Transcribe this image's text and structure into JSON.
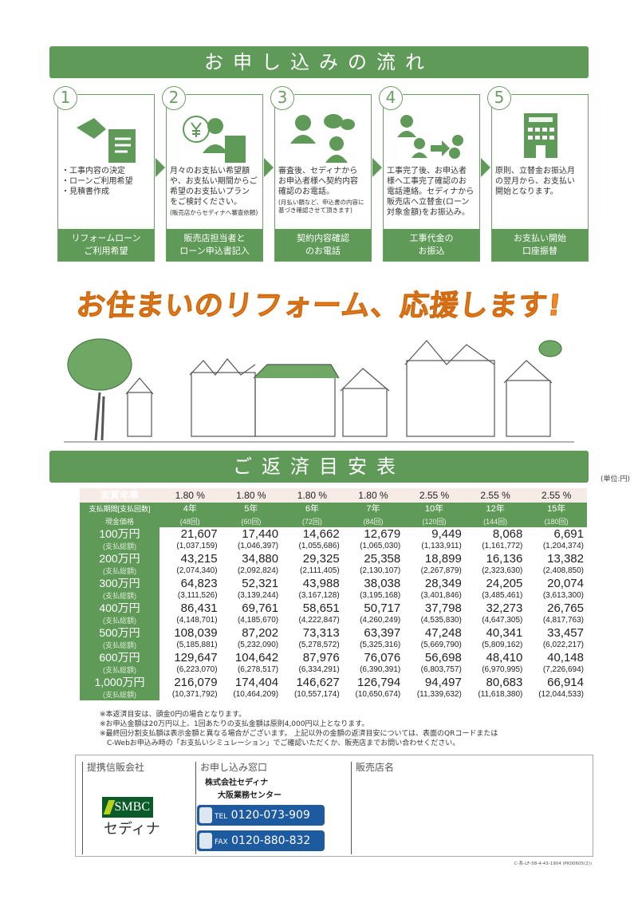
{
  "flow": {
    "title": "お申し込みの流れ",
    "steps": [
      {
        "num": "1",
        "icon": "handshake-document-icon",
        "lines": [
          "・工事内容の決定",
          "・ローンご利用希望",
          "・見積書作成"
        ],
        "note": "",
        "label1": "リフォームローン",
        "label2": "ご利用希望"
      },
      {
        "num": "2",
        "icon": "staff-calculator-icon",
        "lines": [
          "月々のお支払い希望額",
          "や、お支払い期間からご",
          "希望のお支払いプラン",
          "をご検討ください。"
        ],
        "note": "(販売店からセディナへ審査依頼)",
        "label1": "販売店担当者と",
        "label2": "ローン申込書記入"
      },
      {
        "num": "3",
        "icon": "operator-phone-icon",
        "lines": [
          "審査後、セディナから",
          "お申込者様へ契約内容",
          "確認のお電話。"
        ],
        "note": "(月払い額など、申込書の内容に基づき確認させて頂きます)",
        "label1": "契約内容確認",
        "label2": "のお電話"
      },
      {
        "num": "4",
        "icon": "call-transfer-yen-icon",
        "lines": [
          "工事完了後、お申込者",
          "様へ工事完了確認のお",
          "電話連絡。セディナから",
          "販売店へ立替金(ローン",
          "対象金額)をお振込み。"
        ],
        "note": "",
        "label1": "工事代金の",
        "label2": "お振込"
      },
      {
        "num": "5",
        "icon": "bank-icon",
        "icon_text": "BANK",
        "lines": [
          "原則、立替金お振込月",
          "の翌月から、お支払い",
          "開始となります。"
        ],
        "note": "",
        "label1": "お支払い開始",
        "label2": "口座振替"
      }
    ]
  },
  "slogan": "お住まいのリフォーム、応援します!",
  "repayment": {
    "title": "ご返済目安表",
    "unit": "(単位:円)",
    "rate_label": "実質年率",
    "rates": [
      "1.80 %",
      "1.80 %",
      "1.80 %",
      "1.80 %",
      "2.55 %",
      "2.55 %",
      "2.55 %"
    ],
    "period_label": "支払期間[支払回数]",
    "periods": [
      "4年",
      "5年",
      "6年",
      "7年",
      "10年",
      "12年",
      "15年"
    ],
    "price_label": "現金価格",
    "counts": [
      "(48回)",
      "(60回)",
      "(72回)",
      "(84回)",
      "(120回)",
      "(144回)",
      "(180回)"
    ],
    "total_label": "(支払総額)",
    "rows": [
      {
        "amount": "100万円",
        "monthly": [
          "21,607",
          "17,440",
          "14,662",
          "12,679",
          "9,449",
          "8,068",
          "6,691"
        ],
        "total": [
          "(1,037,159)",
          "(1,046,397)",
          "(1,055,686)",
          "(1,065,030)",
          "(1,133,911)",
          "(1,161,772)",
          "(1,204,374)"
        ]
      },
      {
        "amount": "200万円",
        "monthly": [
          "43,215",
          "34,880",
          "29,325",
          "25,358",
          "18,899",
          "16,136",
          "13,382"
        ],
        "total": [
          "(2,074,340)",
          "(2,092,824)",
          "(2,111,405)",
          "(2,130,107)",
          "(2,267,879)",
          "(2,323,630)",
          "(2,408,850)"
        ]
      },
      {
        "amount": "300万円",
        "monthly": [
          "64,823",
          "52,321",
          "43,988",
          "38,038",
          "28,349",
          "24,205",
          "20,074"
        ],
        "total": [
          "(3,111,526)",
          "(3,139,244)",
          "(3,167,128)",
          "(3,195,168)",
          "(3,401,846)",
          "(3,485,461)",
          "(3,613,300)"
        ]
      },
      {
        "amount": "400万円",
        "monthly": [
          "86,431",
          "69,761",
          "58,651",
          "50,717",
          "37,798",
          "32,273",
          "26,765"
        ],
        "total": [
          "(4,148,701)",
          "(4,185,670)",
          "(4,222,847)",
          "(4,260,249)",
          "(4,535,830)",
          "(4,647,305)",
          "(4,817,763)"
        ]
      },
      {
        "amount": "500万円",
        "monthly": [
          "108,039",
          "87,202",
          "73,313",
          "63,397",
          "47,248",
          "40,341",
          "33,457"
        ],
        "total": [
          "(5,185,881)",
          "(5,232,090)",
          "(5,278,572)",
          "(5,325,316)",
          "(5,669,790)",
          "(5,809,162)",
          "(6,022,217)"
        ]
      },
      {
        "amount": "600万円",
        "monthly": [
          "129,647",
          "104,642",
          "87,976",
          "76,076",
          "56,698",
          "48,410",
          "40,148"
        ],
        "total": [
          "(6,223,070)",
          "(6,278,517)",
          "(6,334,291)",
          "(6,390,391)",
          "(6,803,757)",
          "(6,970,995)",
          "(7,226,694)"
        ]
      },
      {
        "amount": "1,000万円",
        "monthly": [
          "216,079",
          "174,404",
          "146,627",
          "126,794",
          "94,497",
          "80,683",
          "66,914"
        ],
        "total": [
          "(10,371,792)",
          "(10,464,209)",
          "(10,557,174)",
          "(10,650,674)",
          "(11,339,632)",
          "(11,618,380)",
          "(12,044,533)"
        ]
      }
    ],
    "notes": [
      "※本返済目安は、頭金0円の場合となります。",
      "※お申込金額は20万円以上、1回あたりの支払金額は原則4,000円以上となります。",
      "※最終回分割支払額は表示金額と異なる場合がございます。 上記以外の金額の返済目安については、表面のQRコードまたは",
      "　C-Webお申込み時の「お支払いシミュレーション」でご確認いただくか、販売店までお問い合わせください。"
    ]
  },
  "footer": {
    "partner_label": "提携信販会社",
    "logo_text": "SMBC",
    "logo_sub": "セディナ",
    "window_label": "お申し込み窓口",
    "company": "株式会社セディナ",
    "center": "大阪業務センター",
    "tel_label": "TEL",
    "tel": "0120-073-909",
    "fax_label": "FAX",
    "fax": "0120-880-832",
    "shop_label": "販売店名",
    "code": "C-系-LF-58-4-43-1904 (PK00605(2))"
  },
  "colors": {
    "green": "#5f9a58",
    "orange": "#ef8a2a",
    "blue": "#1d5aa0"
  }
}
